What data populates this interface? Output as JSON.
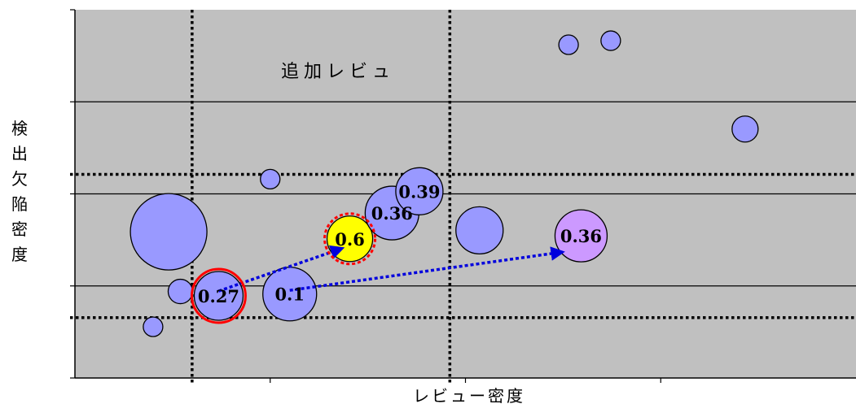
{
  "chart_data": {
    "type": "scatter",
    "title": "",
    "xlabel": "レビュー密度",
    "ylabel": "検出欠陥密度",
    "annotation": "追加レビュ",
    "grid": "horizontal",
    "xlim": [
      0,
      1000
    ],
    "ylim": [
      0,
      1000
    ],
    "threshold_lines": {
      "x": [
        150,
        480
      ],
      "y": [
        164,
        553
      ]
    },
    "colors": {
      "bubble": "#9999ff",
      "highlight": "#ffff00",
      "target": "#cc99ff",
      "plot_bg": "#c0c0c0",
      "arrow": "#0000dd",
      "marker": "#ff0000"
    },
    "points": [
      {
        "x": 632,
        "y": 905,
        "r": 12,
        "label": ""
      },
      {
        "x": 686,
        "y": 916,
        "r": 12,
        "label": ""
      },
      {
        "x": 858,
        "y": 676,
        "r": 16,
        "label": ""
      },
      {
        "x": 250,
        "y": 540,
        "r": 12,
        "label": ""
      },
      {
        "x": 120,
        "y": 397,
        "r": 47,
        "label": ""
      },
      {
        "x": 135,
        "y": 235,
        "r": 15,
        "label": ""
      },
      {
        "x": 100,
        "y": 139,
        "r": 12,
        "label": ""
      },
      {
        "x": 184,
        "y": 223,
        "r": 30,
        "label": "0.27"
      },
      {
        "x": 275,
        "y": 228,
        "r": 33,
        "label": "0.1"
      },
      {
        "x": 352,
        "y": 378,
        "r": 28,
        "label": "0.6",
        "color": "highlight"
      },
      {
        "x": 406,
        "y": 448,
        "r": 33,
        "label": "0.36"
      },
      {
        "x": 441,
        "y": 507,
        "r": 29,
        "label": "0.39"
      },
      {
        "x": 518,
        "y": 401,
        "r": 29,
        "label": ""
      },
      {
        "x": 648,
        "y": 386,
        "r": 32,
        "label": "0.36",
        "color": "target"
      }
    ],
    "arrows": [
      {
        "from": [
          184,
          236
        ],
        "to": [
          342,
          352
        ]
      },
      {
        "from": [
          275,
          238
        ],
        "to": [
          624,
          342
        ]
      }
    ],
    "marked_points": [
      7,
      9
    ]
  }
}
